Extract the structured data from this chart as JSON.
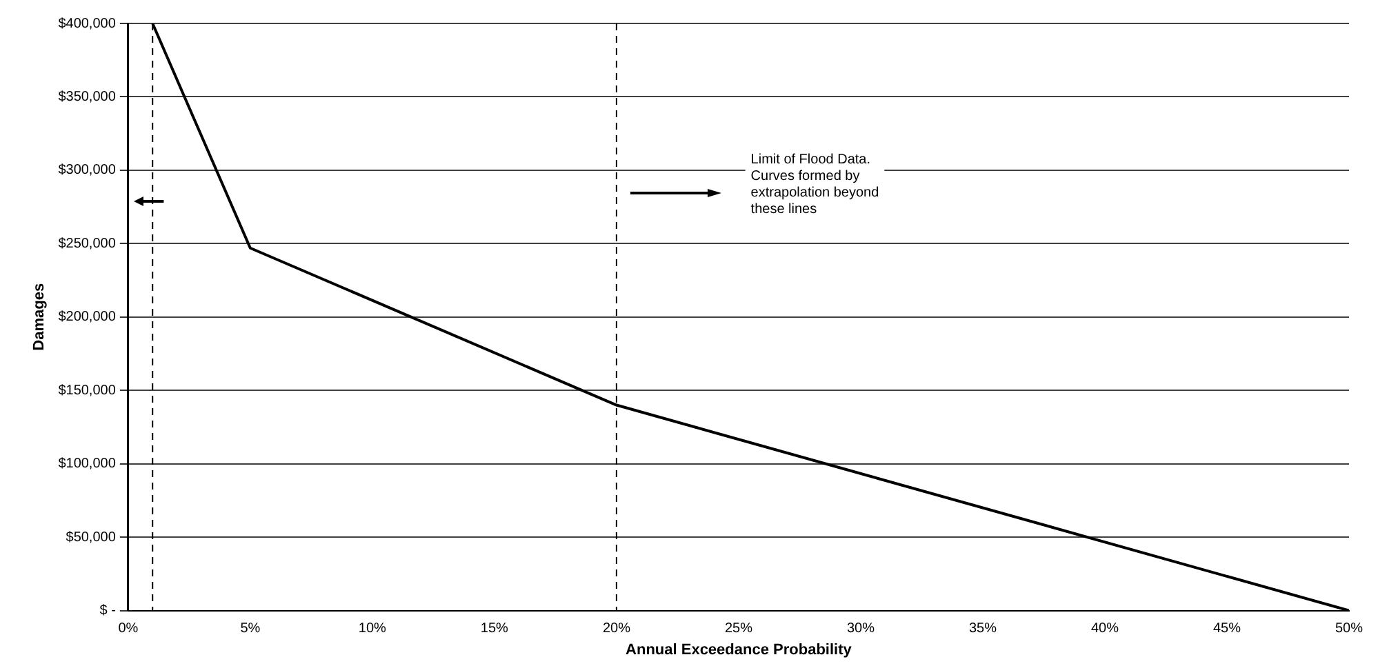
{
  "chart_data": {
    "type": "line",
    "xlabel": "Annual Exceedance Probability",
    "ylabel": "Damages",
    "x": [
      1,
      5,
      20,
      50
    ],
    "series": [
      {
        "color": "#000000",
        "values": [
          400000,
          247000,
          140000,
          0
        ]
      }
    ],
    "xlim": [
      0,
      50
    ],
    "ylim": [
      0,
      400000
    ],
    "xticks": [
      {
        "value": 0,
        "label": "0%"
      },
      {
        "value": 5,
        "label": "5%"
      },
      {
        "value": 10,
        "label": "10%"
      },
      {
        "value": 15,
        "label": "15%"
      },
      {
        "value": 20,
        "label": "20%"
      },
      {
        "value": 25,
        "label": "25%"
      },
      {
        "value": 30,
        "label": "30%"
      },
      {
        "value": 35,
        "label": "35%"
      },
      {
        "value": 40,
        "label": "40%"
      },
      {
        "value": 45,
        "label": "45%"
      },
      {
        "value": 50,
        "label": "50%"
      }
    ],
    "yticks": [
      {
        "value": 0,
        "label": "$ -"
      },
      {
        "value": 50000,
        "label": "$50,000"
      },
      {
        "value": 100000,
        "label": "$100,000"
      },
      {
        "value": 150000,
        "label": "$150,000"
      },
      {
        "value": 200000,
        "label": "$200,000"
      },
      {
        "value": 250000,
        "label": "$250,000"
      },
      {
        "value": 300000,
        "label": "$300,000"
      },
      {
        "value": 350000,
        "label": "$350,000"
      },
      {
        "value": 400000,
        "label": "$400,000"
      }
    ],
    "grid": "y",
    "marker": "none",
    "line_style": "solid",
    "legend": false,
    "ref_lines": [
      {
        "axis": "x",
        "value": 1,
        "color": "#000000",
        "line_style": "dashed"
      },
      {
        "axis": "x",
        "value": 20,
        "color": "#000000",
        "line_style": "dashed"
      }
    ],
    "annotations": [
      "Limit of Flood Data.\nCurves formed by\nextrapolation beyond\nthese lines"
    ]
  }
}
